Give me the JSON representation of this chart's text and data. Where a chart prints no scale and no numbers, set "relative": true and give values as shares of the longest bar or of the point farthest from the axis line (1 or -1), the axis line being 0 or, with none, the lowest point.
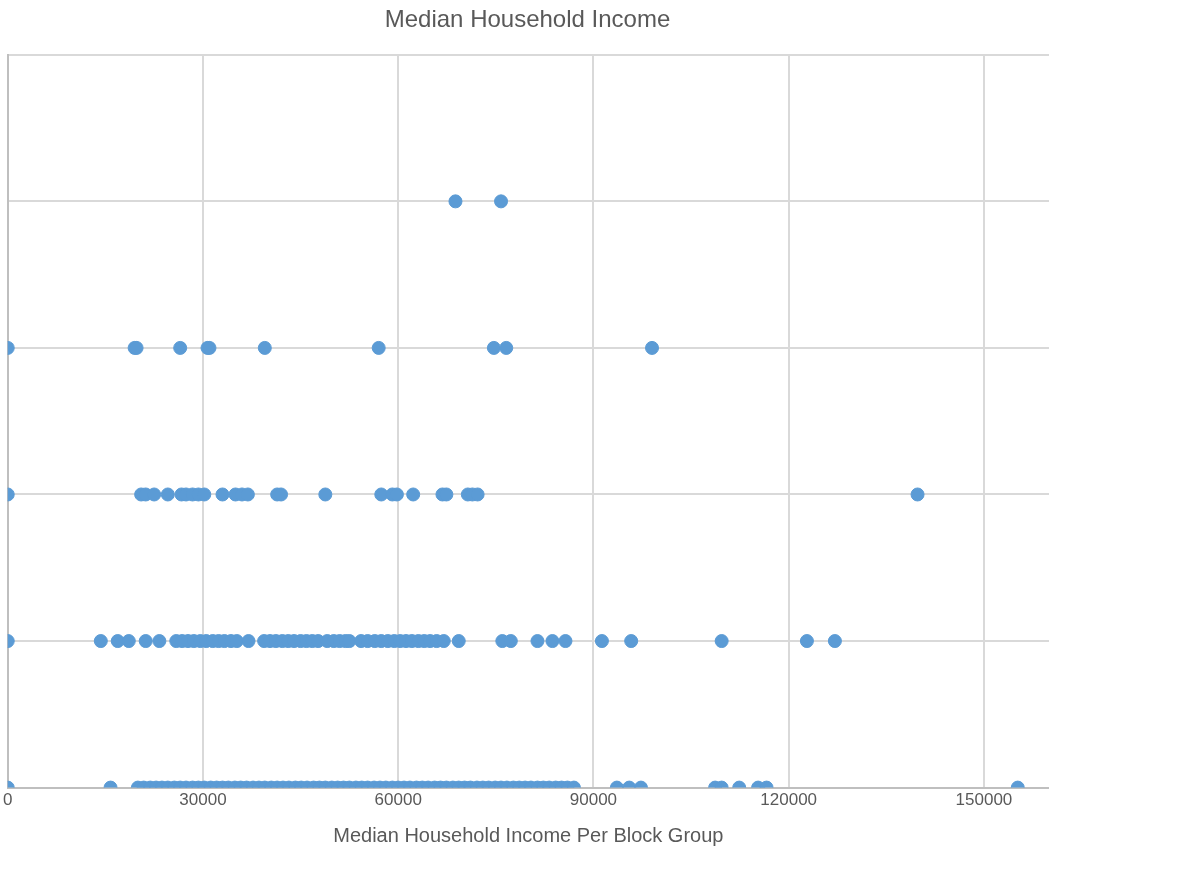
{
  "chart_data": {
    "type": "scatter",
    "title": "Median Household Income",
    "xlabel": "Median Household Income Per Block Group",
    "relative": true,
    "xlim": [
      0,
      160000
    ],
    "xticks": [
      0,
      30000,
      60000,
      90000,
      120000,
      150000
    ],
    "grid": true,
    "legend": false,
    "marker": "circle",
    "series": [
      {
        "color": "#5b9bd5",
        "x": [
          0,
          15800,
          20000,
          20900,
          21900,
          22800,
          23700,
          24600,
          25600,
          26500,
          27400,
          28400,
          29300,
          30200,
          31200,
          32100,
          33000,
          33900,
          34900,
          35800,
          36700,
          37700,
          38600,
          39500,
          40500,
          41400,
          42300,
          43200,
          44200,
          45100,
          46000,
          47000,
          47900,
          48800,
          49800,
          50700,
          51600,
          52500,
          53500,
          54400,
          55300,
          56300,
          57200,
          58100,
          59100,
          60000,
          60900,
          61800,
          62800,
          63700,
          64600,
          65600,
          66500,
          67400,
          68400,
          69300,
          70200,
          71100,
          72100,
          73000,
          73900,
          74900,
          75800,
          76700,
          77700,
          78600,
          79500,
          80400,
          81400,
          82300,
          83200,
          84200,
          85100,
          86000,
          87000,
          93600,
          95500,
          97300,
          108700,
          109700,
          112400,
          115300,
          116600,
          155200,
          0,
          14300,
          16900,
          18600,
          21200,
          23300,
          25900,
          26800,
          27700,
          28600,
          29600,
          30500,
          31500,
          32400,
          33300,
          34300,
          35200,
          37000,
          39400,
          40300,
          41200,
          42200,
          43100,
          44000,
          45000,
          45900,
          46800,
          47700,
          49100,
          50100,
          51000,
          51900,
          52500,
          54300,
          55300,
          56400,
          57400,
          58400,
          59400,
          60300,
          61200,
          62100,
          63100,
          64000,
          64900,
          65900,
          67000,
          69300,
          76000,
          77300,
          81400,
          83700,
          85700,
          91300,
          95800,
          109700,
          122800,
          127100,
          0,
          20500,
          21200,
          22500,
          24600,
          26700,
          27400,
          28400,
          29300,
          30200,
          33000,
          35000,
          36000,
          36900,
          41400,
          42000,
          48800,
          57400,
          59100,
          59800,
          62300,
          66800,
          67400,
          70700,
          71400,
          72200,
          139800,
          0,
          19500,
          19800,
          26500,
          30700,
          31000,
          39500,
          57000,
          74700,
          76600,
          99000,
          68800,
          75800
        ],
        "values": [
          0,
          0,
          0,
          0,
          0,
          0,
          0,
          0,
          0,
          0,
          0,
          0,
          0,
          0,
          0,
          0,
          0,
          0,
          0,
          0,
          0,
          0,
          0,
          0,
          0,
          0,
          0,
          0,
          0,
          0,
          0,
          0,
          0,
          0,
          0,
          0,
          0,
          0,
          0,
          0,
          0,
          0,
          0,
          0,
          0,
          0,
          0,
          0,
          0,
          0,
          0,
          0,
          0,
          0,
          0,
          0,
          0,
          0,
          0,
          0,
          0,
          0,
          0,
          0,
          0,
          0,
          0,
          0,
          0,
          0,
          0,
          0,
          0,
          0,
          0,
          0,
          0,
          0,
          0,
          0,
          0,
          0,
          0,
          0,
          0.25,
          0.25,
          0.25,
          0.25,
          0.25,
          0.25,
          0.25,
          0.25,
          0.25,
          0.25,
          0.25,
          0.25,
          0.25,
          0.25,
          0.25,
          0.25,
          0.25,
          0.25,
          0.25,
          0.25,
          0.25,
          0.25,
          0.25,
          0.25,
          0.25,
          0.25,
          0.25,
          0.25,
          0.25,
          0.25,
          0.25,
          0.25,
          0.25,
          0.25,
          0.25,
          0.25,
          0.25,
          0.25,
          0.25,
          0.25,
          0.25,
          0.25,
          0.25,
          0.25,
          0.25,
          0.25,
          0.25,
          0.25,
          0.25,
          0.25,
          0.25,
          0.25,
          0.25,
          0.25,
          0.25,
          0.25,
          0.25,
          0.25,
          0.5,
          0.5,
          0.5,
          0.5,
          0.5,
          0.5,
          0.5,
          0.5,
          0.5,
          0.5,
          0.5,
          0.5,
          0.5,
          0.5,
          0.5,
          0.5,
          0.5,
          0.5,
          0.5,
          0.5,
          0.5,
          0.5,
          0.5,
          0.5,
          0.5,
          0.5,
          0.5,
          0.75,
          0.75,
          0.75,
          0.75,
          0.75,
          0.75,
          0.75,
          0.75,
          0.75,
          0.75,
          0.75,
          1,
          1
        ]
      }
    ]
  }
}
